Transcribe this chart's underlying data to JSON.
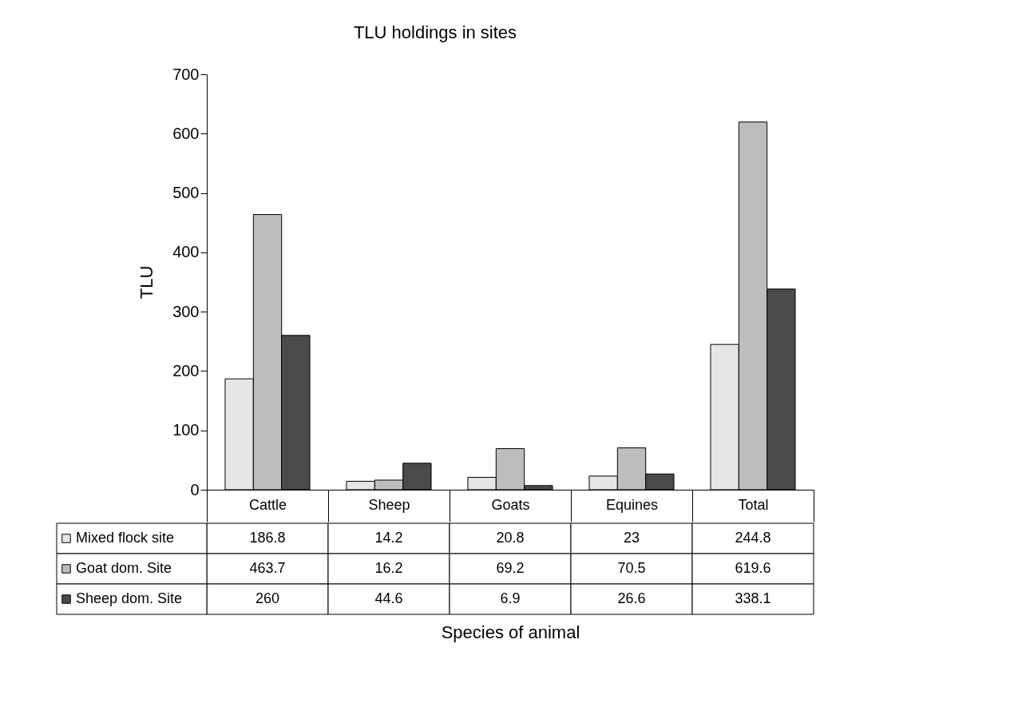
{
  "chart_data": {
    "type": "bar",
    "title": "TLU holdings in sites",
    "annotations": [
      "Species of animal"
    ],
    "ylabel": "TLU",
    "categories": [
      "Cattle",
      "Sheep",
      "Goats",
      "Equines",
      "Total"
    ],
    "series": [
      {
        "name": "Mixed flock site",
        "color": "#e6e6e6",
        "values": [
          186.8,
          14.2,
          20.8,
          23,
          244.8
        ]
      },
      {
        "name": "Goat dom. Site",
        "color": "#bdbdbd",
        "values": [
          463.7,
          16.2,
          69.2,
          70.5,
          619.6
        ]
      },
      {
        "name": "Sheep dom. Site",
        "color": "#4a4a4a",
        "values": [
          260,
          44.6,
          6.9,
          26.6,
          338.1
        ]
      }
    ],
    "ylim": [
      0,
      700
    ],
    "yticks": [
      0,
      100,
      200,
      300,
      400,
      500,
      600,
      700
    ],
    "grid": false,
    "legend": "bottom left",
    "data_labels": true
  }
}
